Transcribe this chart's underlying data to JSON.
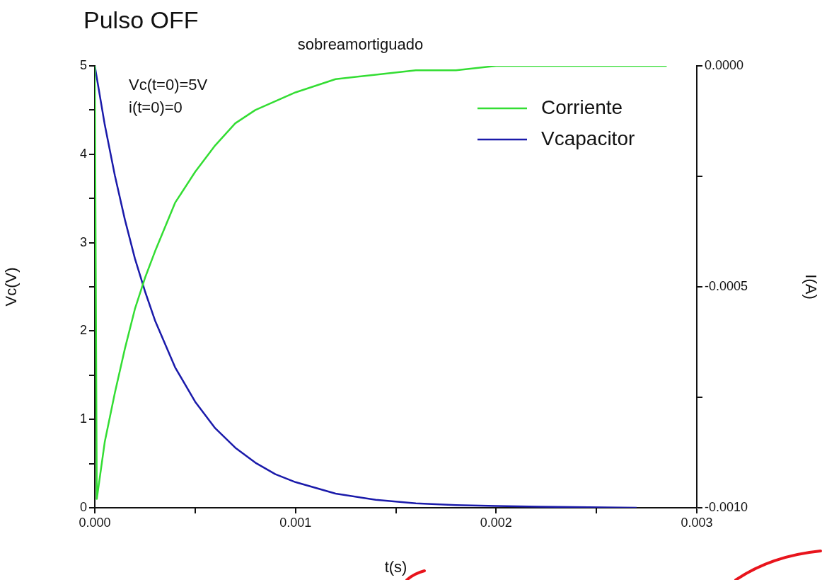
{
  "chart_data": {
    "type": "line",
    "title": "Pulso OFF",
    "subtitle": "sobreamortiguado",
    "xlabel": "t(s)",
    "ylabel": "Vc(V)",
    "y2label": "I(A)",
    "annotations": [
      "Vc(t=0)=5V",
      "i(t=0)=0"
    ],
    "legend": "top right",
    "xlim": [
      0,
      0.003
    ],
    "xticks": [
      {
        "value": 0,
        "label": "0.000"
      },
      {
        "value": 0.0005,
        "label": null
      },
      {
        "value": 0.001,
        "label": "0.001"
      },
      {
        "value": 0.0015,
        "label": null
      },
      {
        "value": 0.002,
        "label": "0.002"
      },
      {
        "value": 0.0025,
        "label": null
      },
      {
        "value": 0.003,
        "label": "0.003"
      }
    ],
    "ylim": [
      0,
      5
    ],
    "yticks": [
      0,
      {
        "value": 0.5,
        "label": null
      },
      1,
      {
        "value": 1.5,
        "label": null
      },
      2,
      {
        "value": 2.5,
        "label": null
      },
      3,
      {
        "value": 3.5,
        "label": null
      },
      4,
      {
        "value": 4.5,
        "label": null
      },
      5
    ],
    "y2lim": [
      -0.001,
      0
    ],
    "y2ticks": [
      {
        "value": -0.001,
        "label": "-0.0010"
      },
      {
        "value": -0.00075,
        "label": null
      },
      {
        "value": -0.0005,
        "label": "-0.0005"
      },
      {
        "value": -0.00025,
        "label": null
      },
      {
        "value": 0,
        "label": "0.0000"
      }
    ],
    "series": [
      {
        "name": "Corriente",
        "color": "#33dd33",
        "axis": "y2",
        "x": [
          0,
          1e-05,
          5e-05,
          0.0001,
          0.00015,
          0.0002,
          0.00025,
          0.0003,
          0.0004,
          0.0005,
          0.0006,
          0.0007,
          0.0008,
          0.0009,
          0.001,
          0.0012,
          0.0014,
          0.0016,
          0.0018,
          0.002,
          0.0024,
          0.00285
        ],
        "values": [
          0,
          -0.00098,
          -0.00085,
          -0.00074,
          -0.00064,
          -0.00055,
          -0.00048,
          -0.00042,
          -0.00031,
          -0.00024,
          -0.00018,
          -0.00013,
          -0.0001,
          -8e-05,
          -6e-05,
          -3e-05,
          -2e-05,
          -1e-05,
          -1e-05,
          0,
          0,
          0
        ]
      },
      {
        "name": "Vcapacitor",
        "color": "#1a1aaa",
        "x": [
          0,
          5e-05,
          0.0001,
          0.00015,
          0.0002,
          0.00025,
          0.0003,
          0.0004,
          0.0005,
          0.0006,
          0.0007,
          0.0008,
          0.0009,
          0.001,
          0.0012,
          0.0014,
          0.0016,
          0.0018,
          0.002,
          0.0023,
          0.0027
        ],
        "values": [
          5,
          4.33,
          3.76,
          3.26,
          2.82,
          2.45,
          2.12,
          1.59,
          1.2,
          0.9,
          0.68,
          0.51,
          0.38,
          0.29,
          0.16,
          0.09,
          0.05,
          0.03,
          0.02,
          0.01,
          0
        ]
      }
    ]
  }
}
